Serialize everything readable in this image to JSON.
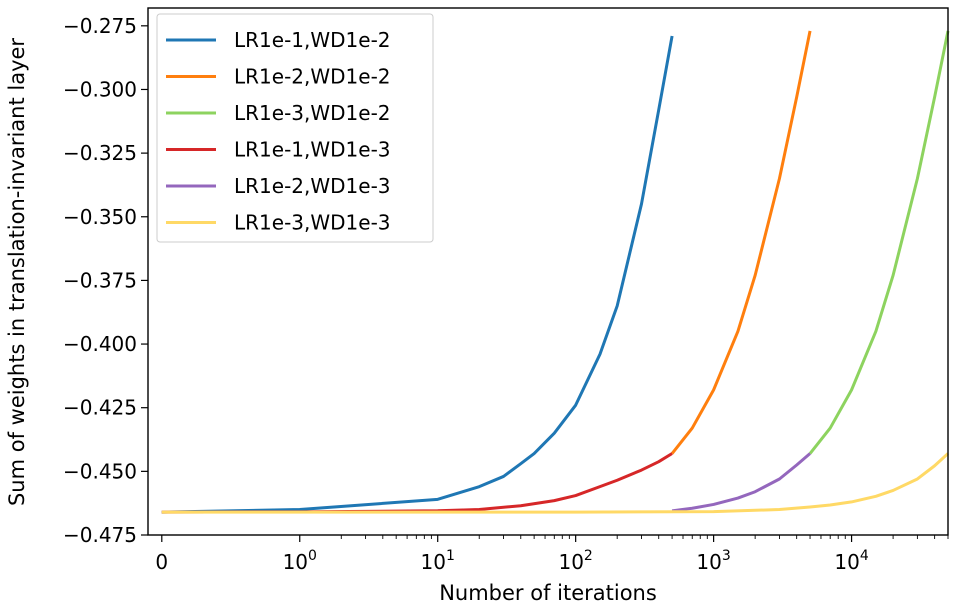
{
  "chart_data": {
    "type": "line",
    "title": "",
    "xlabel": "Number of iterations",
    "ylabel": "Sum of weights in translation-invariant layer",
    "xscale": "symlog",
    "xlim": [
      -0.1,
      50000
    ],
    "ylim": [
      -0.475,
      -0.268
    ],
    "x_ticks": [
      {
        "value": 0,
        "label": "0"
      },
      {
        "value": 1,
        "label": "10",
        "exp": "0"
      },
      {
        "value": 10,
        "label": "10",
        "exp": "1"
      },
      {
        "value": 100,
        "label": "10",
        "exp": "2"
      },
      {
        "value": 1000,
        "label": "10",
        "exp": "3"
      },
      {
        "value": 10000,
        "label": "10",
        "exp": "4"
      }
    ],
    "y_ticks": [
      {
        "value": -0.275,
        "label": "−0.275"
      },
      {
        "value": -0.3,
        "label": "−0.300"
      },
      {
        "value": -0.325,
        "label": "−0.325"
      },
      {
        "value": -0.35,
        "label": "−0.350"
      },
      {
        "value": -0.375,
        "label": "−0.375"
      },
      {
        "value": -0.4,
        "label": "−0.400"
      },
      {
        "value": -0.425,
        "label": "−0.425"
      },
      {
        "value": -0.45,
        "label": "−0.450"
      },
      {
        "value": -0.475,
        "label": "−0.475"
      }
    ],
    "legend_position": "top-left",
    "series": [
      {
        "name": "LR1e-1,WD1e-2",
        "color": "#1f77b4",
        "x": [
          0,
          1,
          10,
          20,
          30,
          40,
          50,
          70,
          100,
          150,
          200,
          300,
          400,
          500
        ],
        "y": [
          -0.466,
          -0.465,
          -0.461,
          -0.456,
          -0.452,
          -0.447,
          -0.443,
          -0.435,
          -0.424,
          -0.404,
          -0.385,
          -0.345,
          -0.308,
          -0.279
        ]
      },
      {
        "name": "LR1e-2,WD1e-2",
        "color": "#ff7f0e",
        "x": [
          500,
          700,
          1000,
          1500,
          2000,
          3000,
          4000,
          5000
        ],
        "y": [
          -0.443,
          -0.433,
          -0.418,
          -0.395,
          -0.373,
          -0.335,
          -0.303,
          -0.277
        ]
      },
      {
        "name": "LR1e-3,WD1e-2",
        "color": "#8dd35f",
        "x": [
          5000,
          7000,
          10000,
          15000,
          20000,
          30000,
          40000,
          50000
        ],
        "y": [
          -0.443,
          -0.433,
          -0.418,
          -0.395,
          -0.373,
          -0.335,
          -0.303,
          -0.277
        ]
      },
      {
        "name": "LR1e-1,WD1e-3",
        "color": "#d62728",
        "x": [
          0,
          1,
          10,
          20,
          40,
          70,
          100,
          150,
          200,
          300,
          400,
          500
        ],
        "y": [
          -0.466,
          -0.4659,
          -0.4655,
          -0.465,
          -0.4635,
          -0.4615,
          -0.4595,
          -0.456,
          -0.4535,
          -0.4495,
          -0.4462,
          -0.443
        ]
      },
      {
        "name": "LR1e-2,WD1e-3",
        "color": "#9467bd",
        "x": [
          500,
          700,
          1000,
          1500,
          2000,
          3000,
          4000,
          5000
        ],
        "y": [
          -0.4655,
          -0.4645,
          -0.463,
          -0.4605,
          -0.458,
          -0.453,
          -0.4475,
          -0.443
        ]
      },
      {
        "name": "LR1e-3,WD1e-3",
        "color": "#ffd966",
        "x": [
          0,
          10,
          100,
          1000,
          3000,
          5000,
          7000,
          10000,
          15000,
          20000,
          30000,
          40000,
          50000
        ],
        "y": [
          -0.466,
          -0.466,
          -0.466,
          -0.4658,
          -0.465,
          -0.464,
          -0.4632,
          -0.462,
          -0.4598,
          -0.4575,
          -0.453,
          -0.4478,
          -0.443
        ]
      }
    ]
  }
}
